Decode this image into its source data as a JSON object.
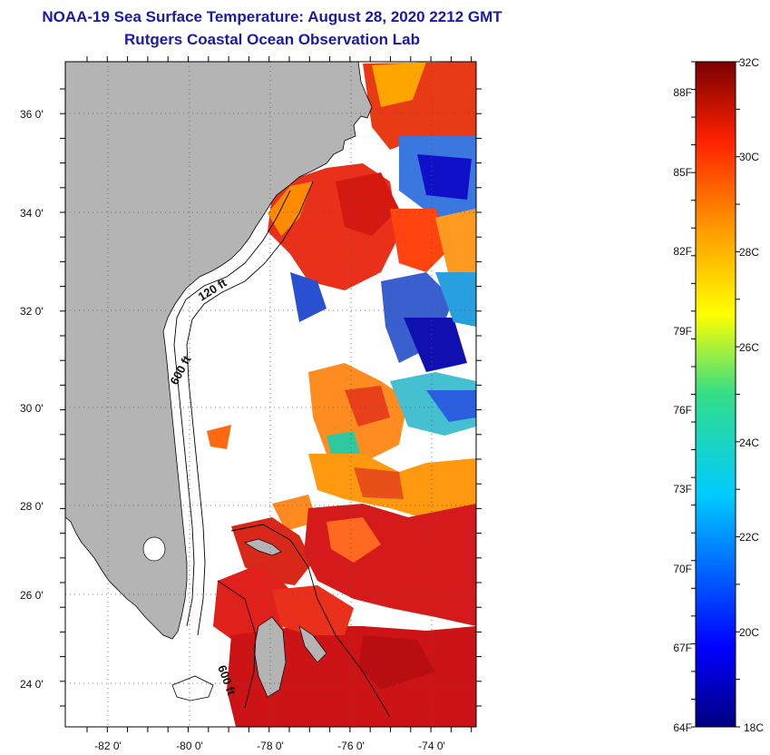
{
  "header": {
    "title": "NOAA-19 Sea Surface Temperature:  August 28, 2020 2212 GMT",
    "subtitle": "Rutgers Coastal Ocean Observation Lab"
  },
  "map": {
    "lat_labels": [
      "36 0'",
      "34 0'",
      "32 0'",
      "30 0'",
      "28 0'",
      "26 0'",
      "24 0'"
    ],
    "lon_labels": [
      "-82 0'",
      "-80 0'",
      "-78 0'",
      "-76 0'",
      "-74 0'"
    ],
    "lat_range": [
      23,
      37.2
    ],
    "lon_range": [
      -83,
      -72.9
    ],
    "depth_labels": [
      "120 ft",
      "600 ft",
      "600 ft"
    ],
    "colors": {
      "land": "#b4b4b4",
      "ocean_nodata": "#ffffff",
      "coast": "#000000"
    }
  },
  "colorbar": {
    "celsius": [
      "32C",
      "30C",
      "28C",
      "26C",
      "24C",
      "22C",
      "20C",
      "18C"
    ],
    "fahrenheit": [
      "88F",
      "85F",
      "82F",
      "79F",
      "76F",
      "73F",
      "70F",
      "67F",
      "64F"
    ],
    "range_c": [
      18,
      32
    ]
  }
}
